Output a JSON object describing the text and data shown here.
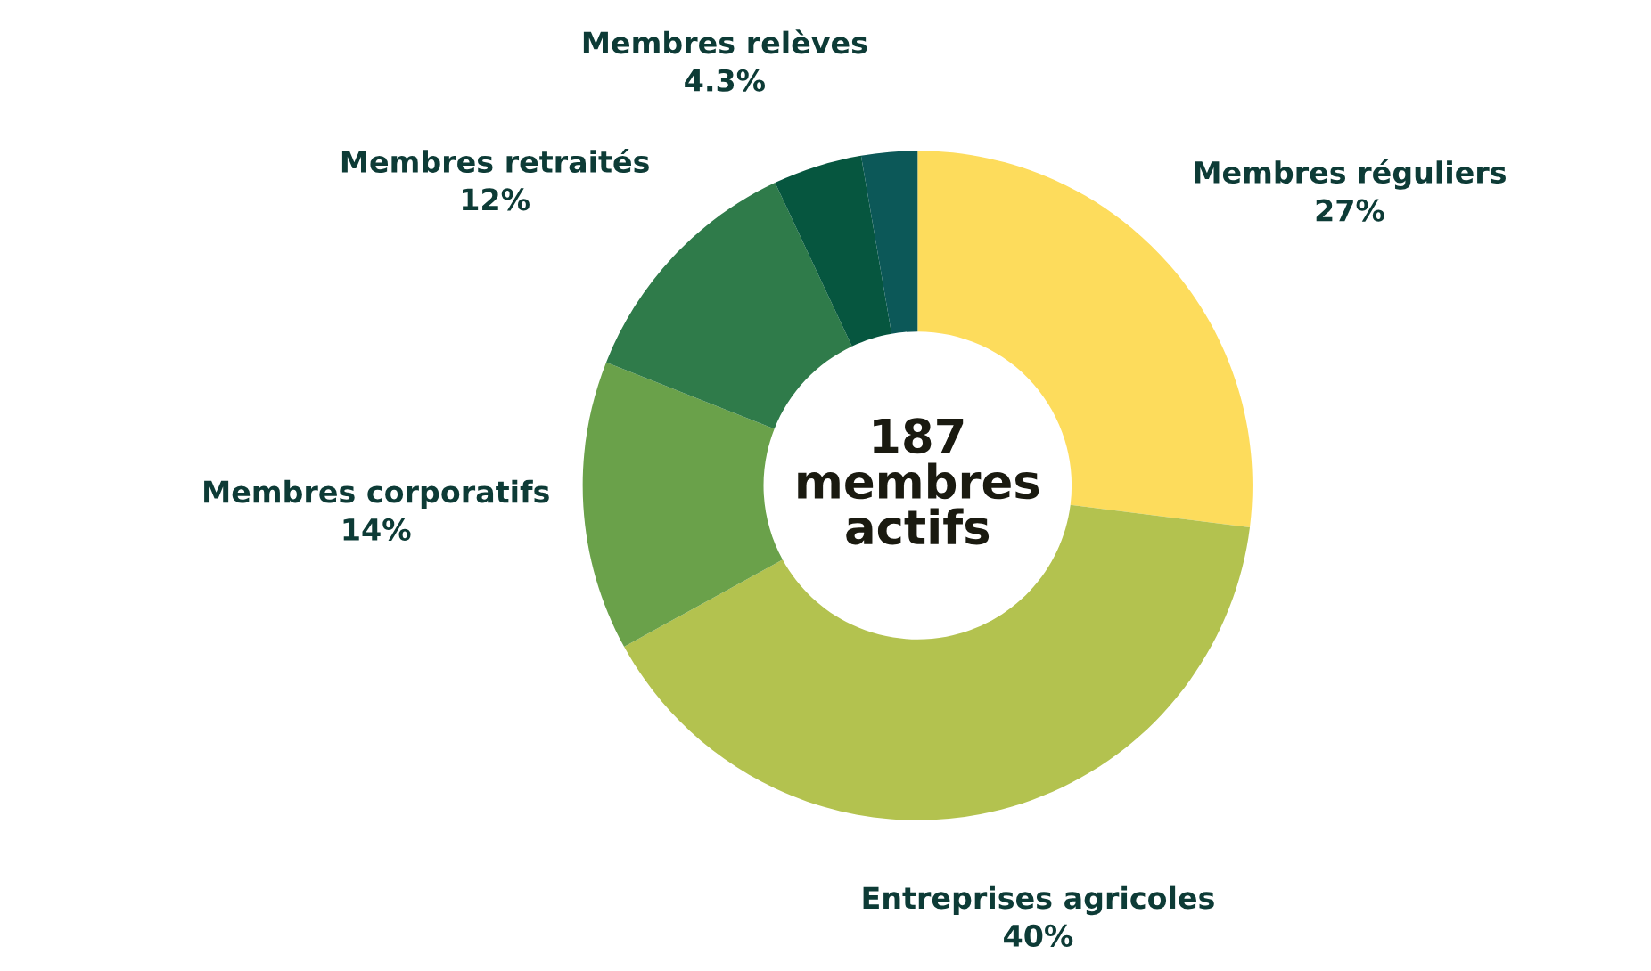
{
  "chart_data": {
    "type": "donut",
    "categories": [
      "Membres réguliers",
      "Entreprises agricoles",
      "Membres corporatifs",
      "Membres retraités",
      "Membres relèves",
      null
    ],
    "values": [
      27,
      40,
      14,
      12,
      4.3,
      2.7
    ],
    "value_labels": [
      "27%",
      "40%",
      "14%",
      "12%",
      "4.3%",
      null
    ],
    "colors": [
      "#fddc5c",
      "#b3c24f",
      "#6aa14a",
      "#2f7b4a",
      "#06563f",
      "#0c5858"
    ],
    "annotations": [
      "187\nmembres\nactifs"
    ],
    "legend": false
  }
}
